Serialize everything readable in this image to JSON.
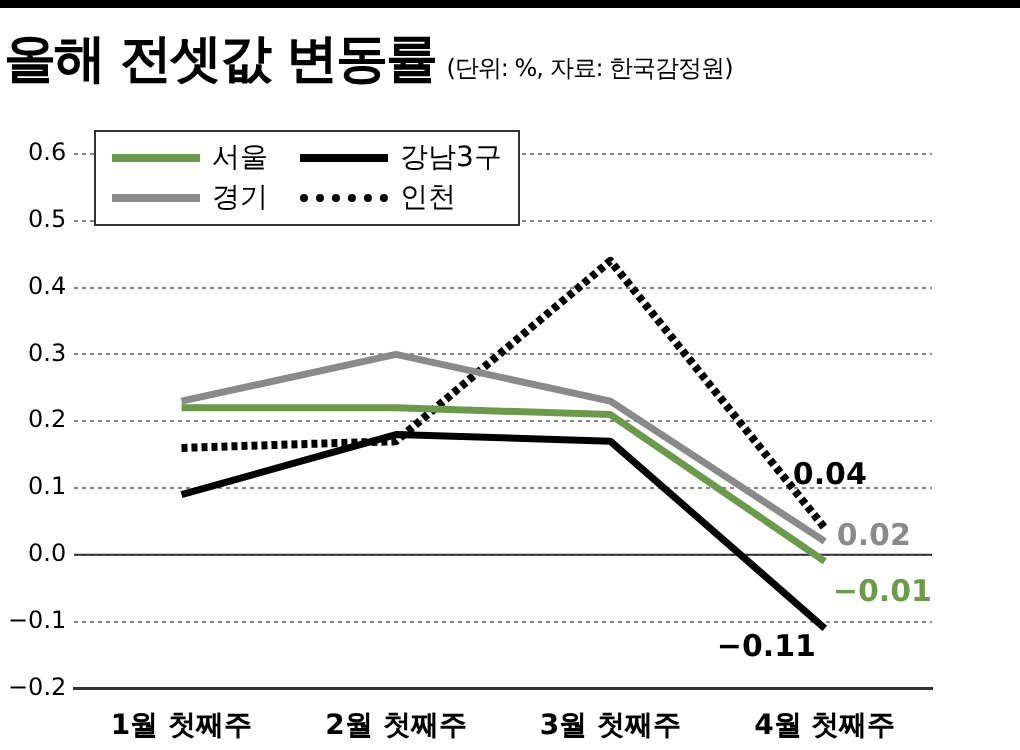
{
  "chart_data": {
    "type": "line",
    "title": "올해 전셋값 변동률",
    "subtitle": "(단위: %, 자료: 한국감정원)",
    "categories": [
      "1월 첫째주",
      "2월 첫째주",
      "3월 첫째주",
      "4월 첫째주"
    ],
    "series": [
      {
        "name": "서울",
        "color": "#6a9a4a",
        "values": [
          0.22,
          0.22,
          0.21,
          -0.01
        ],
        "value_labels": [
          null,
          null,
          null,
          "−0.01"
        ]
      },
      {
        "name": "경기",
        "color": "#8a8a8a",
        "values": [
          0.23,
          0.3,
          0.23,
          0.02
        ],
        "value_labels": [
          null,
          null,
          null,
          "0.02"
        ]
      },
      {
        "name": "강남3구",
        "color": "#000000",
        "values": [
          0.09,
          0.18,
          0.17,
          -0.11
        ],
        "value_labels": [
          null,
          null,
          null,
          "−0.11"
        ]
      },
      {
        "name": "인천",
        "color": "#000000",
        "values": [
          0.16,
          0.17,
          0.44,
          0.04
        ],
        "value_labels": [
          null,
          null,
          null,
          "0.04"
        ],
        "line_style": "dotted"
      }
    ],
    "ylim": [
      -0.2,
      0.6
    ],
    "yticks": [
      {
        "value": -0.2,
        "label": "−0.2"
      },
      {
        "value": -0.1,
        "label": "−0.1"
      },
      {
        "value": 0,
        "label": "0.0"
      },
      0.1,
      0.2,
      0.3,
      0.4,
      0.5,
      0.6
    ],
    "grid": "y",
    "legend": "top left",
    "marker": "none",
    "line_style": "solid"
  }
}
